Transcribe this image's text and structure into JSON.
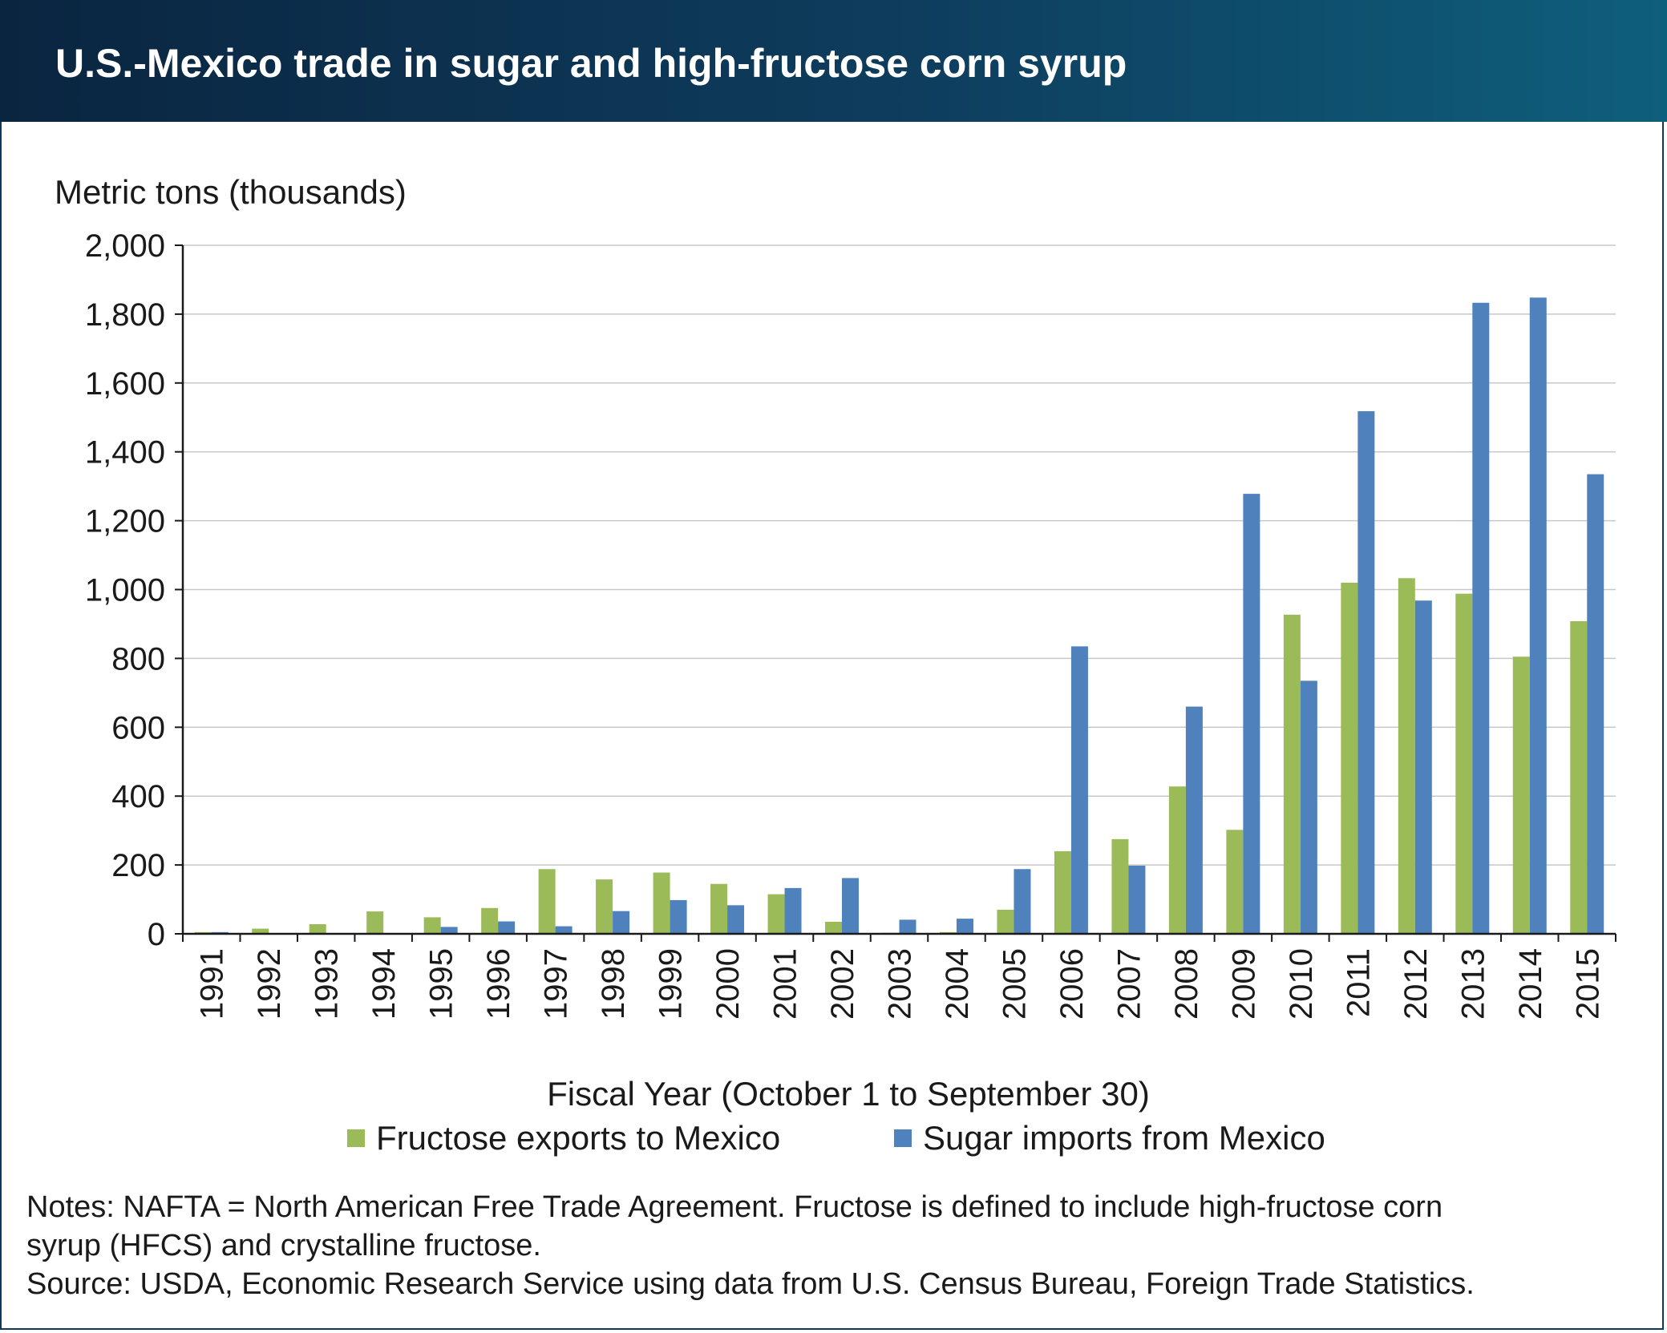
{
  "title": "U.S.-Mexico trade in sugar and high-fructose corn syrup",
  "chart_data": {
    "type": "bar",
    "ylabel": "Metric tons (thousands)",
    "xlabel": "Fiscal Year (October 1 to September 30)",
    "ylim": [
      0,
      2000
    ],
    "yticks": [
      0,
      200,
      400,
      600,
      800,
      1000,
      1200,
      1400,
      1600,
      1800,
      2000
    ],
    "ytick_labels": [
      "0",
      "200",
      "400",
      "600",
      "800",
      "1,000",
      "1,200",
      "1,400",
      "1,600",
      "1,800",
      "2,000"
    ],
    "grid": true,
    "legend_position": "bottom",
    "categories": [
      "1991",
      "1992",
      "1993",
      "1994",
      "1995",
      "1996",
      "1997",
      "1998",
      "1999",
      "2000",
      "2001",
      "2002",
      "2003",
      "2004",
      "2005",
      "2006",
      "2007",
      "2008",
      "2009",
      "2010",
      "2011",
      "2012",
      "2013",
      "2014",
      "2015"
    ],
    "series": [
      {
        "name": "Fructose exports to Mexico",
        "color": "#9bbb59",
        "values": [
          5,
          15,
          28,
          65,
          48,
          75,
          188,
          158,
          178,
          145,
          115,
          35,
          3,
          5,
          70,
          240,
          275,
          428,
          302,
          927,
          1020,
          1033,
          988,
          805,
          908
        ]
      },
      {
        "name": "Sugar imports from Mexico",
        "color": "#4f81bd",
        "values": [
          5,
          2,
          2,
          2,
          20,
          36,
          22,
          66,
          98,
          83,
          133,
          162,
          41,
          44,
          188,
          835,
          198,
          660,
          1278,
          735,
          1518,
          968,
          1833,
          1848,
          1335
        ]
      }
    ]
  },
  "notes": {
    "line1": "Notes: NAFTA = North American Free Trade Agreement. Fructose is defined to include high-fructose corn",
    "line2": "syrup (HFCS) and crystalline fructose.",
    "line3": "Source: USDA, Economic Research Service using data from U.S. Census Bureau, Foreign Trade Statistics."
  }
}
